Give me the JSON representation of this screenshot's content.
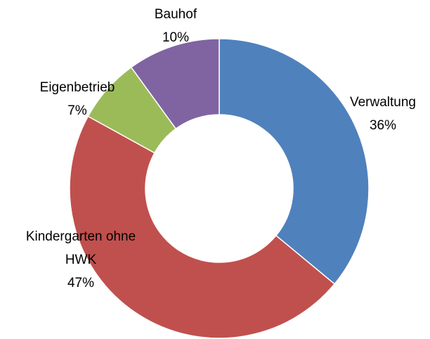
{
  "chart_data": {
    "type": "donut",
    "categories": [
      "Verwaltung",
      "Kindergarten ohne HWK",
      "Eigenbetrieb",
      "Bauhof"
    ],
    "values": [
      36,
      47,
      7,
      10
    ],
    "value_labels": [
      "36%",
      "47%",
      "7%",
      "10%"
    ],
    "colors": [
      "#4f81bd",
      "#c0504d",
      "#9bbb59",
      "#8064a2"
    ]
  }
}
